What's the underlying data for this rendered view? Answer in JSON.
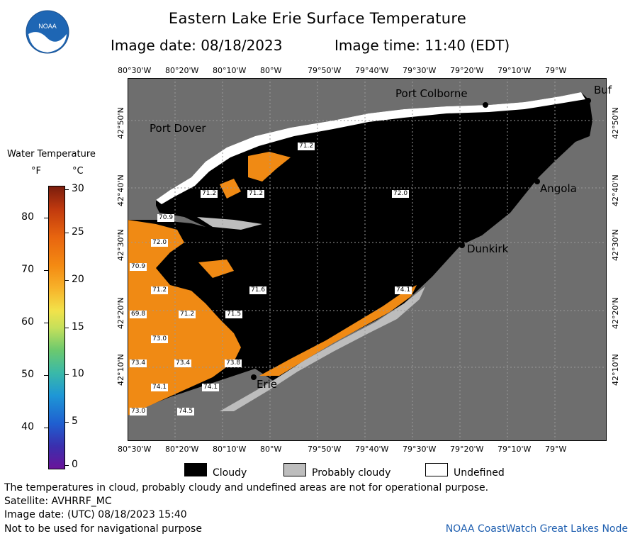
{
  "header": {
    "title": "Eastern Lake Erie Surface Temperature",
    "image_date": "Image date: 08/18/2023",
    "image_time": "Image time: 11:40 (EDT)"
  },
  "logo": {
    "text": "NOAA"
  },
  "axes": {
    "lon_labels": [
      "80°30'W",
      "80°20'W",
      "80°10'W",
      "80°W",
      "79°50'W",
      "79°40'W",
      "79°30'W",
      "79°20'W",
      "79°10'W",
      "79°W"
    ],
    "lat_labels": [
      "42°50'N",
      "42°40'N",
      "42°30'N",
      "42°20'N",
      "42°10'N"
    ]
  },
  "colorbar": {
    "title": "Water Temperature",
    "unit_f": "°F",
    "unit_c": "°C",
    "f_ticks": [
      "80",
      "70",
      "60",
      "50",
      "40"
    ],
    "c_ticks": [
      "30",
      "25",
      "20",
      "15",
      "10",
      "5",
      "0"
    ]
  },
  "places": {
    "port_colborne": "Port Colborne",
    "buffalo": "Buf",
    "port_dover": "Port Dover",
    "angola": "Angola",
    "dunkirk": "Dunkirk",
    "erie": "Erie"
  },
  "temperature_labels": [
    "71.2",
    "71.2",
    "71.2",
    "72.0",
    "70.9",
    "72.0",
    "70.9",
    "71.2",
    "71.6",
    "74.1",
    "69.8",
    "71.2",
    "71.5",
    "73.0",
    "73.4",
    "73.4",
    "73.8",
    "74.1",
    "74.1",
    "73.0",
    "74.5"
  ],
  "legend": {
    "cloudy": "Cloudy",
    "probably_cloudy": "Probably cloudy",
    "undefined": "Undefined"
  },
  "colors": {
    "land": "#6e6e6e",
    "cloud": "#000000",
    "probably_cloud": "#bdbdbd",
    "undefined": "#ffffff",
    "water_warm": "#f08a14",
    "noaa_blue": "#1e66b4"
  },
  "footer": {
    "disclaimer": "The temperatures in cloud, probably cloudy and undefined areas are not for operational purpose.",
    "satellite": "Satellite: AVHRRF_MC",
    "utc_date": "Image date: (UTC) 08/18/2023   15:40",
    "nav_note": "Not to be used for navigational purpose",
    "node": "NOAA CoastWatch Great Lakes Node"
  }
}
